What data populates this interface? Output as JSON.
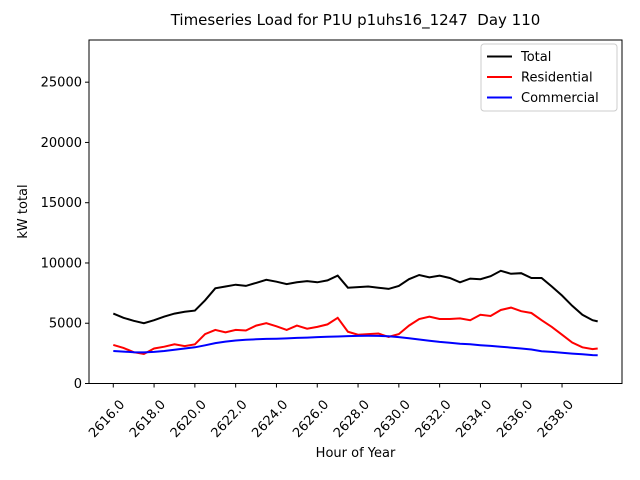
{
  "chart_data": {
    "type": "line",
    "title": "Timeseries Load for P1U p1uhs16_1247  Day 110",
    "xlabel": "Hour of Year",
    "ylabel": "kW total",
    "xlim": [
      2614.81,
      2640.94
    ],
    "ylim": [
      0,
      28500
    ],
    "grid": false,
    "legend_position": "upper right",
    "x_ticks": {
      "values": [
        2616,
        2618,
        2620,
        2622,
        2624,
        2626,
        2628,
        2630,
        2632,
        2634,
        2636,
        2638
      ],
      "labels": [
        "2616.0",
        "2618.0",
        "2620.0",
        "2622.0",
        "2624.0",
        "2626.0",
        "2628.0",
        "2630.0",
        "2632.0",
        "2634.0",
        "2636.0",
        "2638.0"
      ]
    },
    "y_ticks": {
      "values": [
        0,
        5000,
        10000,
        15000,
        20000,
        25000
      ],
      "labels": [
        "0",
        "5000",
        "10000",
        "15000",
        "20000",
        "25000"
      ]
    },
    "x": [
      2616.0,
      2616.5,
      2617.0,
      2617.5,
      2618.0,
      2618.5,
      2619.0,
      2619.5,
      2620.0,
      2620.5,
      2621.0,
      2621.5,
      2622.0,
      2622.5,
      2623.0,
      2623.5,
      2624.0,
      2624.5,
      2625.0,
      2625.5,
      2626.0,
      2626.5,
      2627.0,
      2627.5,
      2628.0,
      2628.5,
      2629.0,
      2629.5,
      2630.0,
      2630.5,
      2631.0,
      2631.5,
      2632.0,
      2632.5,
      2633.0,
      2633.5,
      2634.0,
      2634.5,
      2635.0,
      2635.5,
      2636.0,
      2636.5,
      2637.0,
      2637.5,
      2638.0,
      2638.5,
      2639.0,
      2639.5,
      2639.75
    ],
    "series": [
      {
        "name": "Total",
        "color": "#000000",
        "values": [
          5800,
          5450,
          5200,
          5000,
          5250,
          5550,
          5800,
          5950,
          6050,
          6900,
          7900,
          8050,
          8200,
          8100,
          8350,
          8600,
          8450,
          8250,
          8400,
          8500,
          8400,
          8550,
          8950,
          7950,
          8000,
          8050,
          7950,
          7850,
          8100,
          8650,
          9000,
          8800,
          8950,
          8750,
          8400,
          8700,
          8650,
          8900,
          9350,
          9100,
          9150,
          8750,
          8750,
          8050,
          7300,
          6450,
          5700,
          5250,
          5150
        ]
      },
      {
        "name": "Residential",
        "color": "#ff0000",
        "values": [
          3200,
          2950,
          2600,
          2450,
          2900,
          3050,
          3250,
          3100,
          3250,
          4100,
          4450,
          4250,
          4450,
          4400,
          4800,
          5000,
          4750,
          4450,
          4800,
          4550,
          4700,
          4900,
          5450,
          4300,
          4050,
          4100,
          4150,
          3870,
          4100,
          4800,
          5350,
          5550,
          5350,
          5350,
          5400,
          5250,
          5700,
          5600,
          6100,
          6300,
          6000,
          5850,
          5250,
          4700,
          4050,
          3400,
          3000,
          2850,
          2900
        ]
      },
      {
        "name": "Commercial",
        "color": "#0000ff",
        "values": [
          2700,
          2650,
          2600,
          2580,
          2620,
          2700,
          2800,
          2900,
          3000,
          3170,
          3350,
          3480,
          3570,
          3630,
          3670,
          3700,
          3720,
          3740,
          3780,
          3810,
          3850,
          3880,
          3900,
          3930,
          3950,
          3960,
          3950,
          3920,
          3850,
          3750,
          3650,
          3550,
          3450,
          3380,
          3300,
          3250,
          3180,
          3120,
          3050,
          2980,
          2900,
          2820,
          2680,
          2620,
          2550,
          2480,
          2420,
          2360,
          2340
        ]
      }
    ]
  }
}
